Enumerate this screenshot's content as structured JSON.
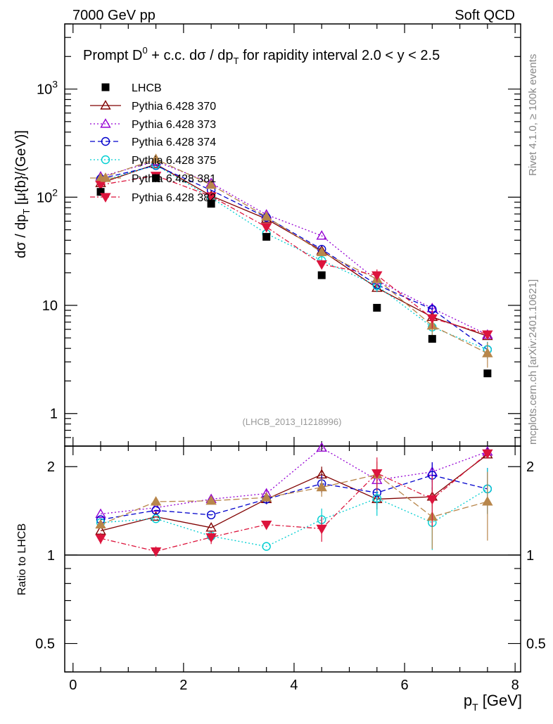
{
  "header": {
    "left": "7000 GeV pp",
    "right": "Soft QCD"
  },
  "side": {
    "rivet": "Rivet 4.1.0, ≥ 100k events",
    "mcplots": "mcplots.cern.ch [arXiv:2401.10621]"
  },
  "chart_data": {
    "type": "scatter",
    "title": "Prompt D⁰ + c.c.  dσ / dpₜ for rapidity interval 2.0 < y < 2.5",
    "title_parts": {
      "main": "Prompt D",
      "sup": "0",
      "mid": " + c.c.  dσ / dp",
      "sub": "T",
      "tail": " for rapidity interval 2.0 < y < 2.5"
    },
    "watermark": "(LHCB_2013_I1218996)",
    "ylabel": {
      "main": "dσ / dp",
      "sub": "T",
      "tail": " [μ{b}/(GeV)]"
    },
    "ratio_ylabel": "Ratio to LHCB",
    "xlabel": {
      "main": "p",
      "sub": "T",
      "tail": " [GeV]"
    },
    "x": [
      0.5,
      1.5,
      2.5,
      3.5,
      4.5,
      5.5,
      6.5,
      7.5
    ],
    "xlim": [
      -0.15,
      8.1
    ],
    "ylim": [
      0.5,
      4000
    ],
    "ratio_ylim": [
      0.4,
      2.35
    ],
    "xticks": [
      "0",
      "2",
      "4",
      "6",
      "8"
    ],
    "xtick_values": [
      0,
      2,
      4,
      6,
      8
    ],
    "yticks_main": [
      {
        "v": 1,
        "base": "1",
        "exp": ""
      },
      {
        "v": 10,
        "base": "10",
        "exp": ""
      },
      {
        "v": 100,
        "base": "10",
        "exp": "2"
      },
      {
        "v": 1000,
        "base": "10",
        "exp": "3"
      }
    ],
    "yticks_ratio": [
      {
        "v": 0.5,
        "label": "0.5"
      },
      {
        "v": 1,
        "label": "1"
      },
      {
        "v": 2,
        "label": "2"
      }
    ],
    "data_series": {
      "name": "LHCB",
      "values": [
        112,
        150,
        87,
        43,
        19,
        9.5,
        4.9,
        2.35
      ]
    },
    "series": [
      {
        "name": "Pythia 6.428 370",
        "color": "#800000",
        "marker": "tri-up-open",
        "dash": "",
        "label_text": "Pythia 6.428 370",
        "values": [
          135,
          202,
          103,
          63,
          32,
          14.5,
          7.8,
          5.2
        ],
        "ratio": [
          1.21,
          1.35,
          1.24,
          1.55,
          1.88,
          1.55,
          1.58,
          2.2
        ],
        "err": [
          0,
          0,
          0,
          0.06,
          0.12,
          0.12,
          0.12,
          0
        ]
      },
      {
        "name": "Pythia 6.428 373",
        "color": "#9400D3",
        "marker": "tri-up-open",
        "dash": "2,3",
        "label_text": "Pythia 6.428 373",
        "values": [
          155,
          215,
          135,
          69,
          44,
          17,
          9.4,
          5.35
        ],
        "ratio": [
          1.38,
          1.45,
          1.55,
          1.62,
          2.32,
          1.8,
          1.92,
          2.25
        ],
        "err": [
          0,
          0,
          0,
          0.06,
          0,
          0.15,
          0.15,
          0
        ]
      },
      {
        "name": "Pythia 6.428 374",
        "color": "#0000cc",
        "marker": "circle-open",
        "dash": "7,4",
        "label_text": "Pythia 6.428 374",
        "values": [
          148,
          196,
          116,
          65,
          33,
          15.5,
          9.2,
          3.9
        ],
        "ratio": [
          1.32,
          1.42,
          1.37,
          1.55,
          1.75,
          1.63,
          1.87,
          1.68
        ],
        "err": [
          0,
          0,
          0,
          0.06,
          0.12,
          0.15,
          0.2,
          0.3
        ]
      },
      {
        "name": "Pythia 6.428 375",
        "color": "#00CED1",
        "marker": "circle-open",
        "dash": "2,3",
        "label_text": "Pythia 6.428 375",
        "values": [
          140,
          198,
          99,
          46,
          26,
          15.2,
          6.3,
          3.9
        ],
        "ratio": [
          1.29,
          1.33,
          1.16,
          1.07,
          1.32,
          1.56,
          1.29,
          1.68
        ],
        "err": [
          0,
          0,
          0,
          0,
          0.12,
          0.2,
          0.25,
          0.3
        ]
      },
      {
        "name": "Pythia 6.428 381",
        "color": "#B8864B",
        "marker": "tri-up-filled",
        "dash": "9,4",
        "label_text": "Pythia 6.428 381",
        "values": [
          150,
          225,
          130,
          66,
          31,
          17.5,
          6.5,
          3.6
        ],
        "ratio": [
          1.27,
          1.52,
          1.53,
          1.57,
          1.7,
          1.88,
          1.35,
          1.52
        ],
        "err": [
          0,
          0.05,
          0,
          0,
          0.12,
          0.2,
          0.3,
          0.4
        ]
      },
      {
        "name": "Pythia 6.428 382",
        "color": "#DC143C",
        "marker": "tri-down-filled",
        "dash": "7,3,2,3",
        "label_text": "Pythia 6.428 382",
        "values": [
          130,
          158,
          102,
          53,
          24,
          19,
          7.6,
          5.4
        ],
        "ratio": [
          1.14,
          1.03,
          1.15,
          1.27,
          1.23,
          1.9,
          1.55,
          2.22
        ],
        "err": [
          0.05,
          0.04,
          0.06,
          0,
          0.12,
          0.25,
          0.3,
          0
        ]
      }
    ]
  }
}
